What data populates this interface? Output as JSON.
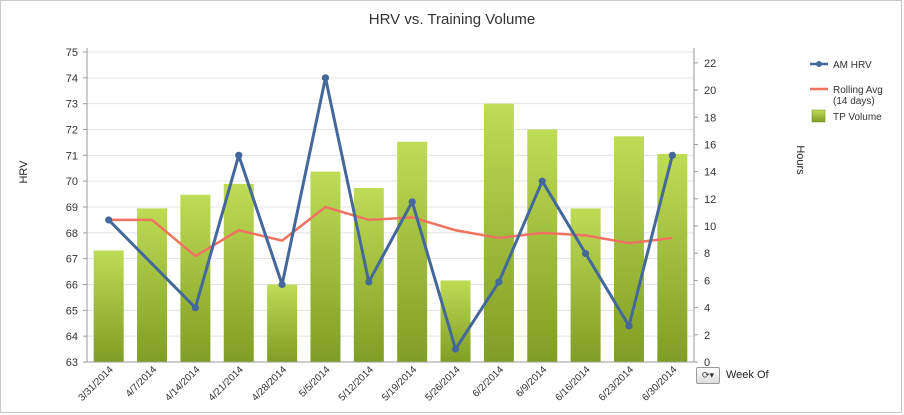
{
  "chart_data": {
    "type": "bar",
    "title": "HRV vs. Training Volume",
    "categories": [
      "3/31/2014",
      "4/7/2014",
      "4/14/2014",
      "4/21/2014",
      "4/28/2014",
      "5/5/2014",
      "5/12/2014",
      "5/19/2014",
      "5/26/2014",
      "6/2/2014",
      "6/9/2014",
      "6/16/2014",
      "6/23/2014",
      "6/30/2014"
    ],
    "xlabel": "Week Of",
    "y_left": {
      "label": "HRV",
      "lim": [
        63,
        75
      ],
      "ticks": [
        63,
        64,
        65,
        66,
        67,
        68,
        69,
        70,
        71,
        72,
        73,
        74,
        75
      ]
    },
    "y_right": {
      "label": "Hours",
      "lim": [
        0,
        22.8
      ],
      "ticks": [
        0,
        2,
        4,
        6,
        8,
        10,
        12,
        14,
        16,
        18,
        20,
        22
      ]
    },
    "grid": true,
    "legend_position": "right",
    "series": [
      {
        "name": "TP Volume",
        "type": "bar",
        "axis": "right",
        "values": [
          8.2,
          11.3,
          12.3,
          13.1,
          5.7,
          14.0,
          12.8,
          16.2,
          6.0,
          19.0,
          17.1,
          11.3,
          16.6,
          15.3
        ],
        "color": "#9cc13a"
      },
      {
        "name": "AM HRV",
        "type": "line",
        "axis": "left",
        "values": [
          68.5,
          null,
          65.1,
          71.0,
          66.0,
          74.0,
          66.1,
          69.2,
          63.5,
          66.1,
          70.0,
          67.2,
          64.4,
          71.0
        ],
        "color": "#44689a"
      },
      {
        "name": "Rolling Avg\n(14 days)",
        "type": "line",
        "axis": "left",
        "values": [
          68.5,
          68.5,
          67.1,
          68.1,
          67.7,
          69.0,
          68.5,
          68.6,
          68.1,
          67.8,
          68.0,
          67.9,
          67.6,
          67.8
        ],
        "color": "#f07361"
      }
    ]
  },
  "legend": {
    "items": [
      {
        "label_lines": [
          "AM HRV"
        ],
        "kind": "line-marker",
        "color": "#44689a"
      },
      {
        "label_lines": [
          "Rolling Avg",
          "(14 days)"
        ],
        "kind": "line",
        "color": "#f07361"
      },
      {
        "label_lines": [
          "TP Volume"
        ],
        "kind": "box",
        "color": "#9cc13a"
      }
    ]
  },
  "dimension_control": {
    "label": "Week Of",
    "icon": "cycle-dimension-icon"
  }
}
